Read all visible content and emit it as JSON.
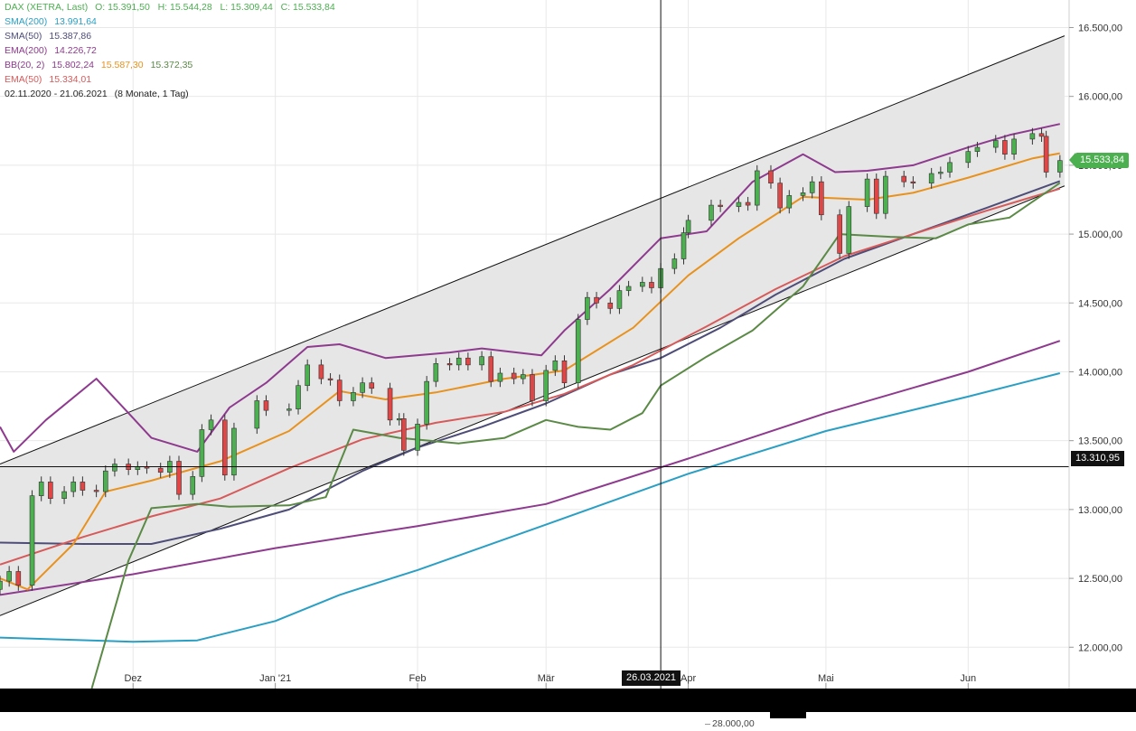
{
  "header": {
    "symbol": "DAX (XETRA, Last)",
    "ohlc": "O: 15.391,50   H: 15.544,28   L: 15.309,44   C: 15.533,84",
    "range": "02.11.2020 - 21.06.2021",
    "range_detail": "(8 Monate, 1 Tag)"
  },
  "legend": [
    {
      "label": "SMA(200)",
      "value": "13.991,64",
      "color": "#2a9fc4"
    },
    {
      "label": "SMA(50)",
      "value": "15.387,86",
      "color": "#4d4d78"
    },
    {
      "label": "EMA(200)",
      "value": "14.226,72",
      "color": "#8e3a8e"
    },
    {
      "label": "BB(20, 2)",
      "values": [
        "15.802,24",
        "15.587,30",
        "15.372,35"
      ],
      "colors": [
        "#8e3a8e",
        "#e8921d",
        "#5a8a45"
      ]
    },
    {
      "label": "EMA(50)",
      "value": "15.334,01",
      "color": "#d75a5a"
    }
  ],
  "price_tag": "15.533,84",
  "crosshair": {
    "price_label": "13.310,95",
    "date_label": "26.03.2021"
  },
  "sub_axis_label": "28.000,00",
  "colors": {
    "up": "#4caf50",
    "down": "#e04646",
    "channel_fill": "#e6e6e6",
    "grid": "#e8e8e8"
  },
  "chart_data": {
    "type": "candlestick",
    "title": "DAX (XETRA, Last)",
    "y_ticks": [
      "12.000,00",
      "12.500,00",
      "13.000,00",
      "13.500,00",
      "14.000,00",
      "14.500,00",
      "15.000,00",
      "15.500,00",
      "16.000,00",
      "16.500,00"
    ],
    "y_tick_values": [
      12000,
      12500,
      13000,
      13500,
      14000,
      14500,
      15000,
      15500,
      16000,
      16500
    ],
    "x_ticks": [
      "Dez",
      "Jan '21",
      "Feb",
      "Mär",
      "Apr",
      "Mai",
      "Jun"
    ],
    "x_tick_dates": [
      "2020-12-01",
      "2021-01-01",
      "2021-02-01",
      "2021-03-01",
      "2021-04-01",
      "2021-05-01",
      "2021-06-01"
    ],
    "x_range": [
      "2020-11-02",
      "2021-06-23"
    ],
    "ylim": [
      11700,
      16700
    ],
    "channel": {
      "upper": [
        [
          "2020-11-02",
          13330
        ],
        [
          "2021-06-22",
          16440
        ]
      ],
      "lower": [
        [
          "2020-11-02",
          12230
        ],
        [
          "2021-06-22",
          15350
        ]
      ]
    },
    "crosshair": {
      "date": "2021-03-26",
      "value": 13310.95
    },
    "last_close": 15533.84,
    "closes": [
      [
        "2020-11-02",
        12480
      ],
      [
        "2020-11-04",
        12550
      ],
      [
        "2020-11-06",
        12450
      ],
      [
        "2020-11-09",
        13100
      ],
      [
        "2020-11-11",
        13200
      ],
      [
        "2020-11-13",
        13080
      ],
      [
        "2020-11-16",
        13130
      ],
      [
        "2020-11-18",
        13200
      ],
      [
        "2020-11-20",
        13140
      ],
      [
        "2020-11-23",
        13130
      ],
      [
        "2020-11-25",
        13280
      ],
      [
        "2020-11-27",
        13330
      ],
      [
        "2020-11-30",
        13290
      ],
      [
        "2020-12-02",
        13310
      ],
      [
        "2020-12-04",
        13300
      ],
      [
        "2020-12-07",
        13270
      ],
      [
        "2020-12-09",
        13350
      ],
      [
        "2020-12-11",
        13110
      ],
      [
        "2020-12-14",
        13240
      ],
      [
        "2020-12-16",
        13580
      ],
      [
        "2020-12-18",
        13650
      ],
      [
        "2020-12-21",
        13250
      ],
      [
        "2020-12-23",
        13590
      ],
      [
        "2020-12-28",
        13790
      ],
      [
        "2020-12-30",
        13720
      ],
      [
        "2021-01-04",
        13730
      ],
      [
        "2021-01-06",
        13900
      ],
      [
        "2021-01-08",
        14050
      ],
      [
        "2021-01-11",
        13950
      ],
      [
        "2021-01-13",
        13940
      ],
      [
        "2021-01-15",
        13790
      ],
      [
        "2021-01-18",
        13850
      ],
      [
        "2021-01-20",
        13920
      ],
      [
        "2021-01-22",
        13880
      ],
      [
        "2021-01-26",
        13650
      ],
      [
        "2021-01-28",
        13660
      ],
      [
        "2021-01-29",
        13430
      ],
      [
        "2021-02-01",
        13620
      ],
      [
        "2021-02-03",
        13930
      ],
      [
        "2021-02-05",
        14060
      ],
      [
        "2021-02-08",
        14050
      ],
      [
        "2021-02-10",
        14100
      ],
      [
        "2021-02-12",
        14050
      ],
      [
        "2021-02-15",
        14110
      ],
      [
        "2021-02-17",
        13930
      ],
      [
        "2021-02-19",
        13990
      ],
      [
        "2021-02-22",
        13950
      ],
      [
        "2021-02-24",
        13980
      ],
      [
        "2021-02-26",
        13790
      ],
      [
        "2021-03-01",
        14010
      ],
      [
        "2021-03-03",
        14080
      ],
      [
        "2021-03-05",
        13920
      ],
      [
        "2021-03-08",
        14380
      ],
      [
        "2021-03-10",
        14540
      ],
      [
        "2021-03-12",
        14500
      ],
      [
        "2021-03-15",
        14460
      ],
      [
        "2021-03-17",
        14590
      ],
      [
        "2021-03-19",
        14620
      ],
      [
        "2021-03-22",
        14650
      ],
      [
        "2021-03-24",
        14610
      ],
      [
        "2021-03-26",
        14750
      ],
      [
        "2021-03-29",
        14820
      ],
      [
        "2021-03-31",
        15010
      ],
      [
        "2021-04-01",
        15100
      ],
      [
        "2021-04-06",
        15210
      ],
      [
        "2021-04-08",
        15200
      ],
      [
        "2021-04-12",
        15230
      ],
      [
        "2021-04-14",
        15210
      ],
      [
        "2021-04-16",
        15460
      ],
      [
        "2021-04-19",
        15370
      ],
      [
        "2021-04-21",
        15190
      ],
      [
        "2021-04-23",
        15280
      ],
      [
        "2021-04-26",
        15300
      ],
      [
        "2021-04-28",
        15380
      ],
      [
        "2021-04-30",
        15140
      ],
      [
        "2021-05-04",
        14860
      ],
      [
        "2021-05-06",
        15200
      ],
      [
        "2021-05-10",
        15400
      ],
      [
        "2021-05-12",
        15150
      ],
      [
        "2021-05-14",
        15420
      ],
      [
        "2021-05-18",
        15380
      ],
      [
        "2021-05-20",
        15370
      ],
      [
        "2021-05-24",
        15440
      ],
      [
        "2021-05-26",
        15450
      ],
      [
        "2021-05-28",
        15520
      ],
      [
        "2021-06-01",
        15600
      ],
      [
        "2021-06-03",
        15630
      ],
      [
        "2021-06-07",
        15680
      ],
      [
        "2021-06-09",
        15580
      ],
      [
        "2021-06-11",
        15690
      ],
      [
        "2021-06-15",
        15730
      ],
      [
        "2021-06-17",
        15710
      ],
      [
        "2021-06-18",
        15450
      ],
      [
        "2021-06-21",
        15534
      ]
    ],
    "series": [
      {
        "name": "SMA(200)",
        "color": "#2a9fc4",
        "points": [
          [
            "2020-11-02",
            12070
          ],
          [
            "2020-12-01",
            12040
          ],
          [
            "2020-12-15",
            12050
          ],
          [
            "2021-01-01",
            12190
          ],
          [
            "2021-01-15",
            12380
          ],
          [
            "2021-02-01",
            12560
          ],
          [
            "2021-03-01",
            12890
          ],
          [
            "2021-04-01",
            13260
          ],
          [
            "2021-05-01",
            13570
          ],
          [
            "2021-06-01",
            13820
          ],
          [
            "2021-06-21",
            13990
          ]
        ]
      },
      {
        "name": "EMA(200)",
        "color": "#8e3a8e",
        "points": [
          [
            "2020-11-02",
            12380
          ],
          [
            "2020-12-01",
            12530
          ],
          [
            "2021-01-01",
            12720
          ],
          [
            "2021-02-01",
            12880
          ],
          [
            "2021-03-01",
            13040
          ],
          [
            "2021-04-01",
            13370
          ],
          [
            "2021-05-01",
            13700
          ],
          [
            "2021-06-01",
            14000
          ],
          [
            "2021-06-21",
            14225
          ]
        ]
      },
      {
        "name": "SMA(50)",
        "color": "#4d4d78",
        "points": [
          [
            "2020-11-02",
            12760
          ],
          [
            "2020-11-20",
            12750
          ],
          [
            "2020-12-05",
            12750
          ],
          [
            "2020-12-20",
            12860
          ],
          [
            "2021-01-04",
            13000
          ],
          [
            "2021-01-20",
            13280
          ],
          [
            "2021-02-01",
            13450
          ],
          [
            "2021-02-15",
            13600
          ],
          [
            "2021-03-01",
            13770
          ],
          [
            "2021-03-15",
            13980
          ],
          [
            "2021-03-26",
            14100
          ],
          [
            "2021-04-08",
            14320
          ],
          [
            "2021-04-20",
            14560
          ],
          [
            "2021-05-05",
            14820
          ],
          [
            "2021-05-20",
            15000
          ],
          [
            "2021-06-05",
            15190
          ],
          [
            "2021-06-21",
            15385
          ]
        ]
      },
      {
        "name": "EMA(50)",
        "color": "#d75a5a",
        "points": [
          [
            "2020-11-02",
            12600
          ],
          [
            "2020-11-20",
            12800
          ],
          [
            "2020-12-05",
            12950
          ],
          [
            "2020-12-20",
            13080
          ],
          [
            "2021-01-04",
            13300
          ],
          [
            "2021-01-20",
            13510
          ],
          [
            "2021-02-05",
            13630
          ],
          [
            "2021-02-20",
            13710
          ],
          [
            "2021-03-05",
            13840
          ],
          [
            "2021-03-20",
            14050
          ],
          [
            "2021-04-05",
            14330
          ],
          [
            "2021-04-20",
            14600
          ],
          [
            "2021-05-05",
            14840
          ],
          [
            "2021-05-20",
            15000
          ],
          [
            "2021-06-05",
            15170
          ],
          [
            "2021-06-21",
            15330
          ]
        ]
      },
      {
        "name": "BB(20, 2) upper",
        "color": "#8e3a8e",
        "points": [
          [
            "2020-11-02",
            13600
          ],
          [
            "2020-11-05",
            13420
          ],
          [
            "2020-11-12",
            13650
          ],
          [
            "2020-11-23",
            13950
          ],
          [
            "2020-11-30",
            13700
          ],
          [
            "2020-12-05",
            13520
          ],
          [
            "2020-12-15",
            13420
          ],
          [
            "2020-12-22",
            13740
          ],
          [
            "2020-12-30",
            13920
          ],
          [
            "2021-01-08",
            14180
          ],
          [
            "2021-01-15",
            14200
          ],
          [
            "2021-01-25",
            14100
          ],
          [
            "2021-02-08",
            14140
          ],
          [
            "2021-02-15",
            14170
          ],
          [
            "2021-02-28",
            14120
          ],
          [
            "2021-03-05",
            14300
          ],
          [
            "2021-03-15",
            14600
          ],
          [
            "2021-03-26",
            14970
          ],
          [
            "2021-04-05",
            15020
          ],
          [
            "2021-04-15",
            15380
          ],
          [
            "2021-04-26",
            15580
          ],
          [
            "2021-05-03",
            15450
          ],
          [
            "2021-05-10",
            15460
          ],
          [
            "2021-05-20",
            15500
          ],
          [
            "2021-06-01",
            15630
          ],
          [
            "2021-06-10",
            15720
          ],
          [
            "2021-06-21",
            15800
          ]
        ]
      },
      {
        "name": "BB(20, 2) middle",
        "color": "#e8921d",
        "points": [
          [
            "2020-11-02",
            12500
          ],
          [
            "2020-11-08",
            12420
          ],
          [
            "2020-11-18",
            12750
          ],
          [
            "2020-11-25",
            13130
          ],
          [
            "2020-12-05",
            13210
          ],
          [
            "2020-12-20",
            13350
          ],
          [
            "2021-01-04",
            13570
          ],
          [
            "2021-01-15",
            13860
          ],
          [
            "2021-01-25",
            13800
          ],
          [
            "2021-02-05",
            13850
          ],
          [
            "2021-02-20",
            13950
          ],
          [
            "2021-03-05",
            14010
          ],
          [
            "2021-03-20",
            14320
          ],
          [
            "2021-04-01",
            14700
          ],
          [
            "2021-04-12",
            14970
          ],
          [
            "2021-04-26",
            15270
          ],
          [
            "2021-05-10",
            15250
          ],
          [
            "2021-05-20",
            15300
          ],
          [
            "2021-06-01",
            15410
          ],
          [
            "2021-06-15",
            15550
          ],
          [
            "2021-06-21",
            15587
          ]
        ]
      },
      {
        "name": "BB(20, 2) lower",
        "color": "#5a8a45",
        "points": [
          [
            "2020-11-22",
            11700
          ],
          [
            "2020-11-30",
            12630
          ],
          [
            "2020-12-05",
            13010
          ],
          [
            "2020-12-15",
            13040
          ],
          [
            "2020-12-22",
            13020
          ],
          [
            "2021-01-04",
            13030
          ],
          [
            "2021-01-12",
            13090
          ],
          [
            "2021-01-18",
            13580
          ],
          [
            "2021-01-28",
            13520
          ],
          [
            "2021-02-10",
            13480
          ],
          [
            "2021-02-20",
            13520
          ],
          [
            "2021-03-01",
            13650
          ],
          [
            "2021-03-08",
            13600
          ],
          [
            "2021-03-15",
            13580
          ],
          [
            "2021-03-22",
            13700
          ],
          [
            "2021-03-26",
            13900
          ],
          [
            "2021-04-05",
            14110
          ],
          [
            "2021-04-15",
            14300
          ],
          [
            "2021-04-26",
            14620
          ],
          [
            "2021-05-04",
            15000
          ],
          [
            "2021-05-15",
            14980
          ],
          [
            "2021-05-25",
            14970
          ],
          [
            "2021-06-01",
            15070
          ],
          [
            "2021-06-10",
            15120
          ],
          [
            "2021-06-21",
            15372
          ]
        ]
      }
    ]
  }
}
